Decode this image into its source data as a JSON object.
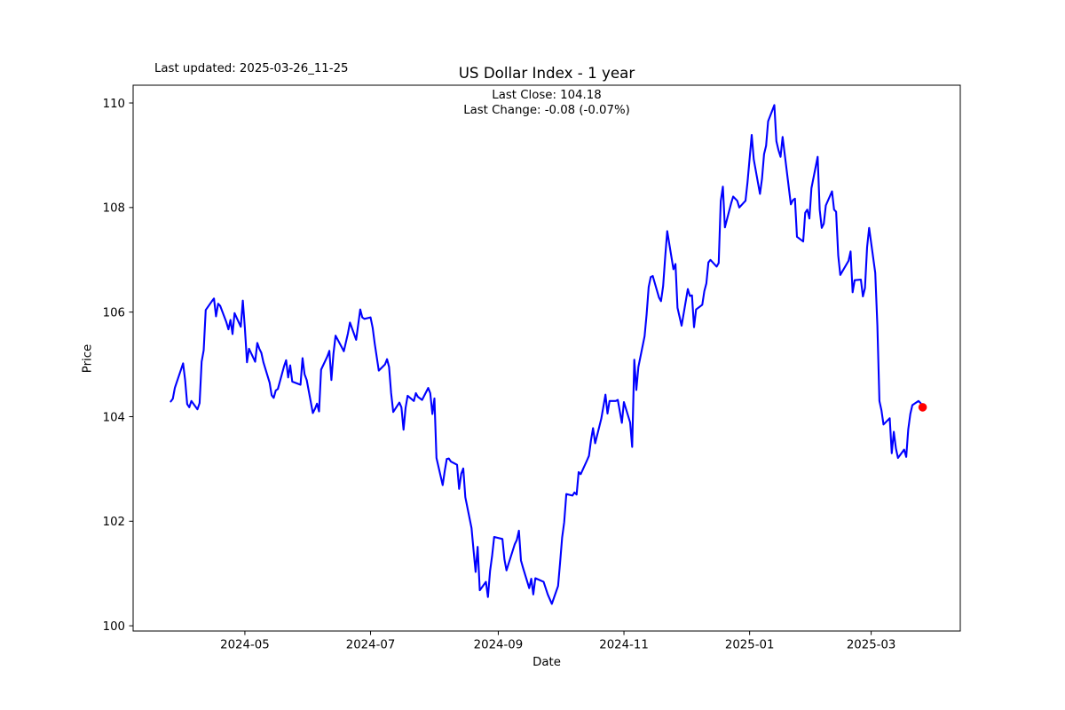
{
  "annotations": {
    "last_updated": "Last updated: 2025-03-26_11-25"
  },
  "chart_data": {
    "type": "line",
    "title": "US Dollar Index - 1 year",
    "subtitle_line1": "Last Close: 104.18",
    "subtitle_line2": "Last Change: -0.08 (-0.07%)",
    "xlabel": "Date",
    "ylabel": "Price",
    "grid": false,
    "legend_position": "none",
    "line_color": "#0000ff",
    "last_point_color": "#ff0000",
    "axis_color": "#000000",
    "x_tick_labels": [
      "2024-05",
      "2024-07",
      "2024-09",
      "2024-11",
      "2025-01",
      "2025-03"
    ],
    "y_ticks": [
      100,
      102,
      104,
      106,
      108,
      110
    ],
    "ylim": [
      99.9,
      110.34
    ],
    "x_start_date": "2024-03-26",
    "x_end_date": "2025-03-26",
    "x_margin_days": 18.25,
    "series": [
      {
        "points": [
          [
            "2024-03-26",
            104.29
          ],
          [
            "2024-03-27",
            104.34
          ],
          [
            "2024-03-28",
            104.55
          ],
          [
            "2024-04-01",
            105.02
          ],
          [
            "2024-04-02",
            104.7
          ],
          [
            "2024-04-03",
            104.24
          ],
          [
            "2024-04-04",
            104.18
          ],
          [
            "2024-04-05",
            104.3
          ],
          [
            "2024-04-08",
            104.14
          ],
          [
            "2024-04-09",
            104.26
          ],
          [
            "2024-04-10",
            105.05
          ],
          [
            "2024-04-11",
            105.27
          ],
          [
            "2024-04-12",
            106.04
          ],
          [
            "2024-04-15",
            106.21
          ],
          [
            "2024-04-16",
            106.26
          ],
          [
            "2024-04-17",
            105.92
          ],
          [
            "2024-04-18",
            106.16
          ],
          [
            "2024-04-19",
            106.12
          ],
          [
            "2024-04-22",
            105.81
          ],
          [
            "2024-04-23",
            105.67
          ],
          [
            "2024-04-24",
            105.85
          ],
          [
            "2024-04-25",
            105.58
          ],
          [
            "2024-04-26",
            105.98
          ],
          [
            "2024-04-29",
            105.72
          ],
          [
            "2024-04-30",
            106.22
          ],
          [
            "2024-05-01",
            105.7
          ],
          [
            "2024-05-02",
            105.04
          ],
          [
            "2024-05-03",
            105.3
          ],
          [
            "2024-05-06",
            105.05
          ],
          [
            "2024-05-07",
            105.41
          ],
          [
            "2024-05-08",
            105.3
          ],
          [
            "2024-05-09",
            105.22
          ],
          [
            "2024-05-10",
            105.04
          ],
          [
            "2024-05-13",
            104.65
          ],
          [
            "2024-05-14",
            104.41
          ],
          [
            "2024-05-15",
            104.36
          ],
          [
            "2024-05-16",
            104.5
          ],
          [
            "2024-05-17",
            104.53
          ],
          [
            "2024-05-20",
            104.96
          ],
          [
            "2024-05-21",
            105.08
          ],
          [
            "2024-05-22",
            104.75
          ],
          [
            "2024-05-23",
            104.98
          ],
          [
            "2024-05-24",
            104.67
          ],
          [
            "2024-05-28",
            104.61
          ],
          [
            "2024-05-29",
            105.12
          ],
          [
            "2024-05-30",
            104.81
          ],
          [
            "2024-05-31",
            104.7
          ],
          [
            "2024-06-03",
            104.07
          ],
          [
            "2024-06-04",
            104.15
          ],
          [
            "2024-06-05",
            104.25
          ],
          [
            "2024-06-06",
            104.1
          ],
          [
            "2024-06-07",
            104.9
          ],
          [
            "2024-06-10",
            105.15
          ],
          [
            "2024-06-11",
            105.26
          ],
          [
            "2024-06-12",
            104.7
          ],
          [
            "2024-06-13",
            105.2
          ],
          [
            "2024-06-14",
            105.55
          ],
          [
            "2024-06-17",
            105.33
          ],
          [
            "2024-06-18",
            105.25
          ],
          [
            "2024-06-20",
            105.59
          ],
          [
            "2024-06-21",
            105.8
          ],
          [
            "2024-06-24",
            105.47
          ],
          [
            "2024-06-26",
            106.05
          ],
          [
            "2024-06-27",
            105.9
          ],
          [
            "2024-06-28",
            105.87
          ],
          [
            "2024-07-01",
            105.9
          ],
          [
            "2024-07-02",
            105.7
          ],
          [
            "2024-07-03",
            105.4
          ],
          [
            "2024-07-05",
            104.88
          ],
          [
            "2024-07-08",
            105.0
          ],
          [
            "2024-07-09",
            105.1
          ],
          [
            "2024-07-10",
            104.95
          ],
          [
            "2024-07-11",
            104.45
          ],
          [
            "2024-07-12",
            104.09
          ],
          [
            "2024-07-15",
            104.27
          ],
          [
            "2024-07-16",
            104.18
          ],
          [
            "2024-07-17",
            103.75
          ],
          [
            "2024-07-18",
            104.17
          ],
          [
            "2024-07-19",
            104.4
          ],
          [
            "2024-07-22",
            104.3
          ],
          [
            "2024-07-23",
            104.45
          ],
          [
            "2024-07-24",
            104.38
          ],
          [
            "2024-07-26",
            104.32
          ],
          [
            "2024-07-29",
            104.55
          ],
          [
            "2024-07-30",
            104.45
          ],
          [
            "2024-07-31",
            104.05
          ],
          [
            "2024-08-01",
            104.35
          ],
          [
            "2024-08-02",
            103.21
          ],
          [
            "2024-08-05",
            102.69
          ],
          [
            "2024-08-06",
            102.96
          ],
          [
            "2024-08-07",
            103.19
          ],
          [
            "2024-08-08",
            103.2
          ],
          [
            "2024-08-09",
            103.14
          ],
          [
            "2024-08-12",
            103.08
          ],
          [
            "2024-08-13",
            102.62
          ],
          [
            "2024-08-14",
            102.91
          ],
          [
            "2024-08-15",
            103.01
          ],
          [
            "2024-08-16",
            102.46
          ],
          [
            "2024-08-19",
            101.87
          ],
          [
            "2024-08-20",
            101.44
          ],
          [
            "2024-08-21",
            101.03
          ],
          [
            "2024-08-22",
            101.51
          ],
          [
            "2024-08-23",
            100.68
          ],
          [
            "2024-08-26",
            100.84
          ],
          [
            "2024-08-27",
            100.55
          ],
          [
            "2024-08-28",
            101.05
          ],
          [
            "2024-08-29",
            101.34
          ],
          [
            "2024-08-30",
            101.7
          ],
          [
            "2024-09-03",
            101.66
          ],
          [
            "2024-09-04",
            101.27
          ],
          [
            "2024-09-05",
            101.06
          ],
          [
            "2024-09-06",
            101.19
          ],
          [
            "2024-09-09",
            101.56
          ],
          [
            "2024-09-10",
            101.64
          ],
          [
            "2024-09-11",
            101.82
          ],
          [
            "2024-09-12",
            101.25
          ],
          [
            "2024-09-13",
            101.11
          ],
          [
            "2024-09-16",
            100.72
          ],
          [
            "2024-09-17",
            100.9
          ],
          [
            "2024-09-18",
            100.6
          ],
          [
            "2024-09-19",
            100.91
          ],
          [
            "2024-09-23",
            100.84
          ],
          [
            "2024-09-25",
            100.6
          ],
          [
            "2024-09-27",
            100.42
          ],
          [
            "2024-09-30",
            100.76
          ],
          [
            "2024-10-01",
            101.21
          ],
          [
            "2024-10-02",
            101.69
          ],
          [
            "2024-10-03",
            101.98
          ],
          [
            "2024-10-04",
            102.52
          ],
          [
            "2024-10-07",
            102.49
          ],
          [
            "2024-10-08",
            102.55
          ],
          [
            "2024-10-09",
            102.51
          ],
          [
            "2024-10-10",
            102.94
          ],
          [
            "2024-10-11",
            102.9
          ],
          [
            "2024-10-14",
            103.16
          ],
          [
            "2024-10-15",
            103.25
          ],
          [
            "2024-10-16",
            103.55
          ],
          [
            "2024-10-17",
            103.78
          ],
          [
            "2024-10-18",
            103.49
          ],
          [
            "2024-10-21",
            103.96
          ],
          [
            "2024-10-23",
            104.42
          ],
          [
            "2024-10-24",
            104.06
          ],
          [
            "2024-10-25",
            104.3
          ],
          [
            "2024-10-28",
            104.3
          ],
          [
            "2024-10-29",
            104.32
          ],
          [
            "2024-10-30",
            104.1
          ],
          [
            "2024-10-31",
            103.88
          ],
          [
            "2024-11-01",
            104.28
          ],
          [
            "2024-11-04",
            103.89
          ],
          [
            "2024-11-05",
            103.42
          ],
          [
            "2024-11-06",
            105.09
          ],
          [
            "2024-11-07",
            104.51
          ],
          [
            "2024-11-08",
            104.95
          ],
          [
            "2024-11-11",
            105.54
          ],
          [
            "2024-11-12",
            105.96
          ],
          [
            "2024-11-13",
            106.48
          ],
          [
            "2024-11-14",
            106.67
          ],
          [
            "2024-11-15",
            106.69
          ],
          [
            "2024-11-18",
            106.28
          ],
          [
            "2024-11-19",
            106.21
          ],
          [
            "2024-11-20",
            106.5
          ],
          [
            "2024-11-21",
            107.05
          ],
          [
            "2024-11-22",
            107.55
          ],
          [
            "2024-11-25",
            106.82
          ],
          [
            "2024-11-26",
            106.92
          ],
          [
            "2024-11-27",
            106.08
          ],
          [
            "2024-11-29",
            105.74
          ],
          [
            "2024-12-02",
            106.44
          ],
          [
            "2024-12-03",
            106.31
          ],
          [
            "2024-12-04",
            106.32
          ],
          [
            "2024-12-05",
            105.71
          ],
          [
            "2024-12-06",
            106.05
          ],
          [
            "2024-12-09",
            106.14
          ],
          [
            "2024-12-10",
            106.4
          ],
          [
            "2024-12-11",
            106.55
          ],
          [
            "2024-12-12",
            106.95
          ],
          [
            "2024-12-13",
            107.0
          ],
          [
            "2024-12-16",
            106.87
          ],
          [
            "2024-12-17",
            106.94
          ],
          [
            "2024-12-18",
            108.12
          ],
          [
            "2024-12-19",
            108.4
          ],
          [
            "2024-12-20",
            107.62
          ],
          [
            "2024-12-23",
            108.08
          ],
          [
            "2024-12-24",
            108.21
          ],
          [
            "2024-12-26",
            108.13
          ],
          [
            "2024-12-27",
            108.0
          ],
          [
            "2024-12-30",
            108.13
          ],
          [
            "2024-12-31",
            108.49
          ],
          [
            "2025-01-02",
            109.39
          ],
          [
            "2025-01-03",
            108.92
          ],
          [
            "2025-01-06",
            108.26
          ],
          [
            "2025-01-07",
            108.55
          ],
          [
            "2025-01-08",
            109.02
          ],
          [
            "2025-01-09",
            109.18
          ],
          [
            "2025-01-10",
            109.65
          ],
          [
            "2025-01-13",
            109.96
          ],
          [
            "2025-01-14",
            109.27
          ],
          [
            "2025-01-15",
            109.1
          ],
          [
            "2025-01-16",
            108.97
          ],
          [
            "2025-01-17",
            109.35
          ],
          [
            "2025-01-21",
            108.06
          ],
          [
            "2025-01-22",
            108.14
          ],
          [
            "2025-01-23",
            108.17
          ],
          [
            "2025-01-24",
            107.44
          ],
          [
            "2025-01-27",
            107.35
          ],
          [
            "2025-01-28",
            107.9
          ],
          [
            "2025-01-29",
            107.96
          ],
          [
            "2025-01-30",
            107.79
          ],
          [
            "2025-01-31",
            108.37
          ],
          [
            "2025-02-03",
            108.97
          ],
          [
            "2025-02-04",
            107.96
          ],
          [
            "2025-02-05",
            107.61
          ],
          [
            "2025-02-06",
            107.69
          ],
          [
            "2025-02-07",
            108.04
          ],
          [
            "2025-02-10",
            108.31
          ],
          [
            "2025-02-11",
            107.96
          ],
          [
            "2025-02-12",
            107.92
          ],
          [
            "2025-02-13",
            107.08
          ],
          [
            "2025-02-14",
            106.71
          ],
          [
            "2025-02-18",
            106.98
          ],
          [
            "2025-02-19",
            107.16
          ],
          [
            "2025-02-20",
            106.38
          ],
          [
            "2025-02-21",
            106.61
          ],
          [
            "2025-02-24",
            106.62
          ],
          [
            "2025-02-25",
            106.3
          ],
          [
            "2025-02-26",
            106.46
          ],
          [
            "2025-02-27",
            107.24
          ],
          [
            "2025-02-28",
            107.61
          ],
          [
            "2025-03-03",
            106.75
          ],
          [
            "2025-03-04",
            105.74
          ],
          [
            "2025-03-05",
            104.3
          ],
          [
            "2025-03-06",
            104.12
          ],
          [
            "2025-03-07",
            103.85
          ],
          [
            "2025-03-10",
            103.97
          ],
          [
            "2025-03-11",
            103.3
          ],
          [
            "2025-03-12",
            103.71
          ],
          [
            "2025-03-13",
            103.39
          ],
          [
            "2025-03-14",
            103.21
          ],
          [
            "2025-03-17",
            103.37
          ],
          [
            "2025-03-18",
            103.23
          ],
          [
            "2025-03-19",
            103.76
          ],
          [
            "2025-03-20",
            104.05
          ],
          [
            "2025-03-21",
            104.22
          ],
          [
            "2025-03-24",
            104.3
          ],
          [
            "2025-03-25",
            104.26
          ],
          [
            "2025-03-26",
            104.18
          ]
        ]
      }
    ]
  }
}
